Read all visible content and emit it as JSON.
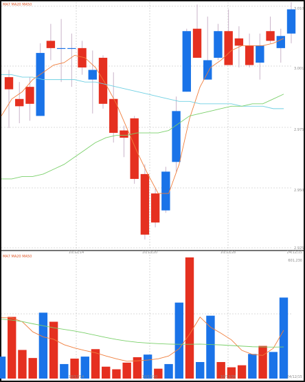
{
  "price_panel": {
    "ma_legend": "MA7 MA20 MA50",
    "price_labels": [
      "3.010",
      "3.001",
      "2.975",
      "2.950",
      "2.925"
    ],
    "date_labels": [
      "10/12/14",
      "10/13/20",
      "10/13/28",
      "24/12/15"
    ]
  },
  "volume_panel": {
    "ma_legend": "MA7 MA20 MA50",
    "max_label": "601,230",
    "date_labels": [
      "10/12/14",
      "10/13/20",
      "10/13/28",
      "24/12/15"
    ]
  },
  "chart_data": [
    {
      "type": "candlestick",
      "title": "",
      "ylim": [
        2.92,
        3.022
      ],
      "legend": "top-left",
      "grid": true,
      "up_color": "#1a73e8",
      "down_color": "#e53020",
      "candles": [
        {
          "o": 2.991,
          "c": 2.986,
          "h": 2.994,
          "l": 2.97
        },
        {
          "o": 2.982,
          "c": 2.979,
          "h": 2.989,
          "l": 2.972
        },
        {
          "o": 2.987,
          "c": 2.98,
          "h": 2.991,
          "l": 2.973
        },
        {
          "o": 2.975,
          "c": 3.001,
          "h": 3.005,
          "l": 2.975
        },
        {
          "o": 3.006,
          "c": 3.003,
          "h": 3.013,
          "l": 2.998
        },
        {
          "o": 3.003,
          "c": 3.003,
          "h": 3.015,
          "l": 2.989
        },
        {
          "o": 3.003,
          "c": 3.003,
          "h": 3.009,
          "l": 2.987
        },
        {
          "o": 3.003,
          "c": 2.995,
          "h": 3.006,
          "l": 2.992
        },
        {
          "o": 2.99,
          "c": 2.994,
          "h": 3.002,
          "l": 2.976
        },
        {
          "o": 2.999,
          "c": 2.98,
          "h": 3.0,
          "l": 2.978
        },
        {
          "o": 2.982,
          "c": 2.968,
          "h": 2.993,
          "l": 2.964
        },
        {
          "o": 2.969,
          "c": 2.966,
          "h": 2.971,
          "l": 2.958
        },
        {
          "o": 2.974,
          "c": 2.949,
          "h": 2.975,
          "l": 2.947
        },
        {
          "o": 2.951,
          "c": 2.926,
          "h": 2.955,
          "l": 2.924
        },
        {
          "o": 2.943,
          "c": 2.931,
          "h": 2.945,
          "l": 2.929
        },
        {
          "o": 2.936,
          "c": 2.952,
          "h": 2.954,
          "l": 2.935
        },
        {
          "o": 2.956,
          "c": 2.977,
          "h": 2.983,
          "l": 2.952
        },
        {
          "o": 2.985,
          "c": 3.01,
          "h": 3.011,
          "l": 2.985
        },
        {
          "o": 3.011,
          "c": 2.999,
          "h": 3.021,
          "l": 2.999
        },
        {
          "o": 2.99,
          "c": 2.998,
          "h": 3.016,
          "l": 2.99
        },
        {
          "o": 2.999,
          "c": 3.01,
          "h": 3.013,
          "l": 2.998
        },
        {
          "o": 3.01,
          "c": 2.996,
          "h": 3.019,
          "l": 2.996
        },
        {
          "o": 3.007,
          "c": 3.004,
          "h": 3.012,
          "l": 2.995
        },
        {
          "o": 3.004,
          "c": 2.996,
          "h": 3.009,
          "l": 2.995
        },
        {
          "o": 2.997,
          "c": 3.004,
          "h": 3.009,
          "l": 2.99
        },
        {
          "o": 3.01,
          "c": 3.006,
          "h": 3.016,
          "l": 3.005
        },
        {
          "o": 3.003,
          "c": 3.008,
          "h": 3.011,
          "l": 2.997
        },
        {
          "o": 3.009,
          "c": 3.019,
          "h": 3.022,
          "l": 3.005
        }
      ],
      "series": [
        {
          "name": "MA7",
          "color": "#f07d3b",
          "values": [
            2.975,
            2.982,
            2.985,
            2.99,
            2.993,
            2.996,
            2.997,
            3.0,
            2.999,
            2.995,
            2.988,
            2.98,
            2.97,
            2.96,
            2.951,
            2.943,
            2.943,
            2.955,
            2.974,
            2.987,
            2.995,
            2.998,
            3.002,
            3.004,
            3.004,
            3.004,
            3.005,
            3.007
          ]
        },
        {
          "name": "MA20",
          "color": "#6fd0e3",
          "values": [
            2.992,
            2.992,
            2.991,
            2.991,
            2.99,
            2.99,
            2.99,
            2.99,
            2.989,
            2.989,
            2.988,
            2.987,
            2.986,
            2.985,
            2.984,
            2.983,
            2.982,
            2.981,
            2.981,
            2.98,
            2.98,
            2.98,
            2.98,
            2.979,
            2.979,
            2.979,
            2.978,
            2.978
          ]
        },
        {
          "name": "MA50",
          "color": "#7ad06a",
          "values": [
            2.949,
            2.949,
            2.95,
            2.95,
            2.951,
            2.953,
            2.955,
            2.958,
            2.961,
            2.964,
            2.966,
            2.967,
            2.967,
            2.968,
            2.968,
            2.968,
            2.969,
            2.972,
            2.975,
            2.976,
            2.977,
            2.978,
            2.979,
            2.979,
            2.98,
            2.98,
            2.982,
            2.984
          ]
        }
      ]
    },
    {
      "type": "bar",
      "title": "",
      "ylim": [
        0,
        601230
      ],
      "legend": "top-left",
      "grid": true,
      "bars": [
        {
          "v": 109000,
          "dir": "up"
        },
        {
          "v": 306000,
          "dir": "down"
        },
        {
          "v": 142000,
          "dir": "down"
        },
        {
          "v": 102000,
          "dir": "down"
        },
        {
          "v": 327000,
          "dir": "up"
        },
        {
          "v": 282000,
          "dir": "down"
        },
        {
          "v": 72000,
          "dir": "up"
        },
        {
          "v": 99000,
          "dir": "down"
        },
        {
          "v": 109000,
          "dir": "up"
        },
        {
          "v": 146000,
          "dir": "down"
        },
        {
          "v": 59000,
          "dir": "down"
        },
        {
          "v": 46000,
          "dir": "down"
        },
        {
          "v": 79000,
          "dir": "down"
        },
        {
          "v": 106000,
          "dir": "down"
        },
        {
          "v": 119000,
          "dir": "up"
        },
        {
          "v": 49000,
          "dir": "down"
        },
        {
          "v": 72000,
          "dir": "up"
        },
        {
          "v": 377000,
          "dir": "up"
        },
        {
          "v": 601230,
          "dir": "down"
        },
        {
          "v": 82000,
          "dir": "up"
        },
        {
          "v": 312000,
          "dir": "up"
        },
        {
          "v": 82000,
          "dir": "down"
        },
        {
          "v": 56000,
          "dir": "down"
        },
        {
          "v": 66000,
          "dir": "down"
        },
        {
          "v": 122000,
          "dir": "up"
        },
        {
          "v": 162000,
          "dir": "down"
        },
        {
          "v": 132000,
          "dir": "up"
        },
        {
          "v": 402000,
          "dir": "up"
        }
      ],
      "series": [
        {
          "name": "MA7",
          "color": "#f07d3b",
          "values": [
            302000,
            301000,
            282000,
            232000,
            207000,
            195000,
            168000,
            152000,
            139000,
            128000,
            112000,
            98000,
            86000,
            88000,
            92000,
            98000,
            112000,
            148000,
            220000,
            305000,
            255000,
            225000,
            192000,
            140000,
            120000,
            115000,
            150000,
            240000
          ]
        },
        {
          "name": "MA20",
          "color": "#7ad06a",
          "values": [
            295000,
            290000,
            283000,
            272000,
            262000,
            252000,
            244000,
            236000,
            226000,
            215000,
            204000,
            194000,
            186000,
            180000,
            176000,
            173000,
            171000,
            170000,
            170000,
            171000,
            169000,
            167000,
            164000,
            161000,
            158000,
            157000,
            156000,
            157000
          ]
        }
      ]
    }
  ]
}
